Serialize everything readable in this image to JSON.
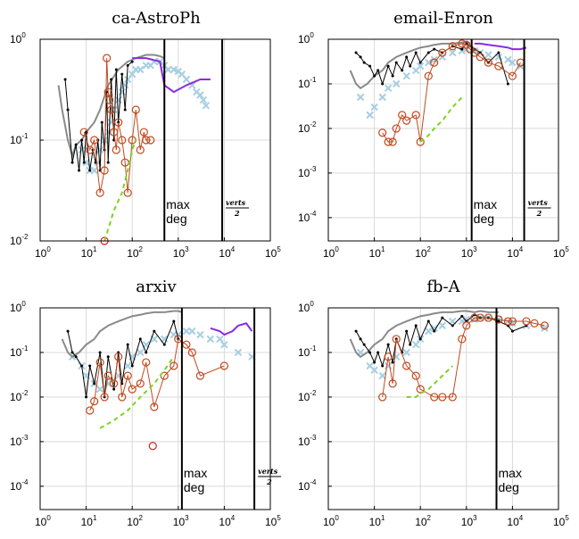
{
  "colors": {
    "light_blue": "#a6cee3",
    "gray": "#8a8a8a",
    "black": "#000000",
    "orange": "#c04a1f",
    "green": "#7ed321",
    "purple": "#8a2be2",
    "grid": "#d9d9d9"
  },
  "annotations": {
    "max_deg_line1": "max",
    "max_deg_line2": "deg",
    "verts_num": "verts",
    "verts_den": "2"
  },
  "chart_data": [
    {
      "type": "scatter",
      "title": "ca-AstroPh",
      "xscale": "log",
      "yscale": "log",
      "xlim": [
        1,
        100000
      ],
      "ylim": [
        0.01,
        1
      ],
      "yticks": [
        0.01,
        0.1,
        1
      ],
      "xticks": [
        1,
        10,
        100,
        1000,
        10000,
        100000
      ],
      "grid": true,
      "max_deg": 500,
      "verts_half": 9000,
      "series": [
        {
          "kind": "cloud",
          "x": [
            8,
            10,
            12,
            15,
            18,
            20,
            25,
            30,
            35,
            40,
            50,
            60,
            70,
            80,
            100,
            120,
            150,
            200,
            250,
            300,
            400,
            500,
            600,
            800,
            1000,
            1200,
            1500,
            2000,
            2500,
            3000,
            3500,
            4000
          ],
          "y": [
            0.08,
            0.06,
            0.05,
            0.05,
            0.06,
            0.08,
            0.1,
            0.12,
            0.15,
            0.2,
            0.25,
            0.3,
            0.35,
            0.4,
            0.45,
            0.5,
            0.5,
            0.55,
            0.55,
            0.6,
            0.6,
            0.55,
            0.5,
            0.5,
            0.48,
            0.45,
            0.4,
            0.35,
            0.3,
            0.28,
            0.25,
            0.22
          ]
        },
        {
          "kind": "gray",
          "x": [
            2.5,
            3,
            4,
            5,
            6,
            8,
            10,
            15,
            20,
            30,
            50,
            80,
            120,
            200,
            300,
            400,
            500
          ],
          "y": [
            0.35,
            0.2,
            0.1,
            0.07,
            0.09,
            0.1,
            0.12,
            0.15,
            0.2,
            0.35,
            0.5,
            0.6,
            0.65,
            0.7,
            0.7,
            0.68,
            0.65
          ]
        },
        {
          "kind": "black",
          "x": [
            3.5,
            4,
            5,
            6,
            7,
            8,
            9,
            10,
            12,
            14,
            16,
            18,
            20,
            22,
            25,
            28,
            30,
            35,
            40,
            45,
            50,
            60,
            70,
            80,
            100
          ],
          "y": [
            0.4,
            0.2,
            0.06,
            0.09,
            0.05,
            0.1,
            0.06,
            0.12,
            0.05,
            0.08,
            0.06,
            0.1,
            0.05,
            0.15,
            0.08,
            0.3,
            0.06,
            0.4,
            0.1,
            0.5,
            0.15,
            0.45,
            0.2,
            0.55,
            0.6
          ]
        },
        {
          "kind": "orange",
          "x": [
            9,
            12,
            15,
            20,
            25,
            28,
            30,
            32,
            35,
            40,
            45,
            50,
            60,
            70,
            80,
            100,
            120,
            150,
            180,
            200,
            250
          ],
          "y": [
            0.12,
            0.08,
            0.1,
            0.03,
            0.05,
            0.65,
            0.3,
            0.25,
            0.2,
            0.12,
            0.08,
            0.15,
            0.1,
            0.06,
            0.03,
            0.1,
            0.2,
            0.08,
            0.12,
            0.1,
            0.1
          ]
        },
        {
          "kind": "orange-point",
          "x": [
            25
          ],
          "y": [
            0.01
          ]
        },
        {
          "kind": "green",
          "x": [
            25,
            40,
            60,
            80,
            100,
            120
          ],
          "y": [
            0.01,
            0.02,
            0.03,
            0.05,
            0.08,
            0.1
          ]
        },
        {
          "kind": "purple",
          "x": [
            100,
            200,
            400,
            500,
            800,
            1500,
            3000,
            5000
          ],
          "y": [
            0.65,
            0.65,
            0.6,
            0.35,
            0.3,
            0.35,
            0.4,
            0.4
          ]
        }
      ]
    },
    {
      "type": "scatter",
      "title": "email-Enron",
      "xscale": "log",
      "yscale": "log",
      "xlim": [
        1,
        100000
      ],
      "ylim": [
        3e-05,
        1
      ],
      "yticks": [
        0.0001,
        0.001,
        0.01,
        0.1,
        1
      ],
      "xticks": [
        1,
        10,
        100,
        1000,
        10000,
        100000
      ],
      "grid": true,
      "max_deg": 1300,
      "verts_half": 18000,
      "series": [
        {
          "kind": "cloud",
          "x": [
            5,
            8,
            10,
            15,
            20,
            30,
            50,
            80,
            100,
            150,
            200,
            300,
            500,
            800,
            1000,
            1500,
            2000,
            3000,
            5000,
            8000,
            10000,
            15000
          ],
          "y": [
            0.05,
            0.02,
            0.03,
            0.05,
            0.08,
            0.1,
            0.15,
            0.2,
            0.25,
            0.3,
            0.35,
            0.4,
            0.5,
            0.55,
            0.6,
            0.55,
            0.5,
            0.45,
            0.4,
            0.35,
            0.3,
            0.25
          ]
        },
        {
          "kind": "gray",
          "x": [
            3,
            4,
            5,
            7,
            10,
            15,
            20,
            30,
            50,
            80,
            100,
            150,
            200,
            300,
            500,
            800,
            1000,
            1200
          ],
          "y": [
            0.2,
            0.1,
            0.08,
            0.1,
            0.15,
            0.2,
            0.3,
            0.4,
            0.5,
            0.6,
            0.65,
            0.7,
            0.75,
            0.8,
            0.8,
            0.85,
            0.85,
            0.8
          ]
        },
        {
          "kind": "black",
          "x": [
            4,
            5,
            6,
            8,
            10,
            12,
            15,
            20,
            25,
            30,
            40,
            50,
            60,
            80,
            100,
            150,
            200,
            300,
            500,
            800,
            1000,
            1500,
            2000,
            3000,
            5000,
            8000
          ],
          "y": [
            0.5,
            0.4,
            0.3,
            0.25,
            0.15,
            0.2,
            0.1,
            0.25,
            0.15,
            0.3,
            0.2,
            0.4,
            0.25,
            0.5,
            0.3,
            0.5,
            0.6,
            0.5,
            0.7,
            0.6,
            0.8,
            0.6,
            0.5,
            0.3,
            0.5,
            0.1
          ]
        },
        {
          "kind": "orange",
          "x": [
            15,
            20,
            25,
            30,
            40,
            50,
            80,
            100,
            150,
            200,
            300,
            500,
            800,
            1000,
            1200,
            1500,
            2000,
            3000,
            5000,
            10000,
            15000
          ],
          "y": [
            0.008,
            0.005,
            0.005,
            0.01,
            0.02,
            0.015,
            0.02,
            0.005,
            0.15,
            0.3,
            0.5,
            0.7,
            0.8,
            0.75,
            0.6,
            0.5,
            0.4,
            0.3,
            0.25,
            0.15,
            0.3
          ]
        },
        {
          "kind": "green",
          "x": [
            100,
            150,
            200,
            300,
            500,
            800
          ],
          "y": [
            0.005,
            0.007,
            0.01,
            0.015,
            0.03,
            0.05
          ]
        },
        {
          "kind": "purple",
          "x": [
            1500,
            2000,
            3000,
            5000,
            8000,
            10000,
            15000,
            20000
          ],
          "y": [
            0.8,
            0.8,
            0.75,
            0.7,
            0.65,
            0.6,
            0.6,
            0.65
          ]
        }
      ]
    },
    {
      "type": "scatter",
      "title": "arxiv",
      "xscale": "log",
      "yscale": "log",
      "xlim": [
        1,
        100000
      ],
      "ylim": [
        3e-05,
        1
      ],
      "yticks": [
        0.0001,
        0.001,
        0.01,
        0.1,
        1
      ],
      "xticks": [
        1,
        10,
        100,
        1000,
        10000,
        100000
      ],
      "grid": true,
      "max_deg": 1200,
      "verts_half": 45000,
      "series": [
        {
          "kind": "cloud",
          "x": [
            5,
            8,
            10,
            15,
            20,
            30,
            50,
            80,
            100,
            150,
            200,
            300,
            500,
            800,
            1000,
            1500,
            2000,
            3000,
            5000,
            8000,
            10000,
            20000,
            40000
          ],
          "y": [
            0.08,
            0.05,
            0.03,
            0.02,
            0.015,
            0.02,
            0.03,
            0.05,
            0.08,
            0.1,
            0.15,
            0.2,
            0.2,
            0.25,
            0.25,
            0.3,
            0.3,
            0.25,
            0.2,
            0.2,
            0.15,
            0.1,
            0.08
          ]
        },
        {
          "kind": "gray",
          "x": [
            3,
            4,
            5,
            7,
            10,
            15,
            20,
            30,
            50,
            80,
            100,
            150,
            200,
            300,
            500,
            800,
            1000,
            1200
          ],
          "y": [
            0.2,
            0.1,
            0.08,
            0.1,
            0.15,
            0.2,
            0.3,
            0.4,
            0.5,
            0.6,
            0.65,
            0.7,
            0.75,
            0.8,
            0.8,
            0.85,
            0.85,
            0.8
          ]
        },
        {
          "kind": "black",
          "x": [
            4,
            5,
            6,
            8,
            10,
            12,
            15,
            20,
            25,
            30,
            40,
            50,
            60,
            80,
            100,
            150,
            200,
            300,
            500,
            800,
            1000
          ],
          "y": [
            0.3,
            0.1,
            0.08,
            0.05,
            0.01,
            0.05,
            0.02,
            0.1,
            0.01,
            0.08,
            0.015,
            0.1,
            0.02,
            0.15,
            0.05,
            0.2,
            0.1,
            0.3,
            0.15,
            0.5,
            0.2
          ]
        },
        {
          "kind": "orange",
          "x": [
            12,
            15,
            20,
            25,
            30,
            40,
            50,
            60,
            80,
            100,
            150,
            200,
            300,
            500,
            800,
            1000,
            1500,
            2000,
            3000,
            10000
          ],
          "y": [
            0.005,
            0.008,
            0.06,
            0.01,
            0.03,
            0.02,
            0.08,
            0.01,
            0.03,
            0.015,
            0.02,
            0.06,
            0.006,
            0.03,
            0.05,
            0.2,
            0.15,
            0.1,
            0.03,
            0.05
          ]
        },
        {
          "kind": "orange-point",
          "x": [
            280
          ],
          "y": [
            0.0008
          ]
        },
        {
          "kind": "green",
          "x": [
            20,
            40,
            80,
            150,
            300,
            500,
            800
          ],
          "y": [
            0.002,
            0.003,
            0.005,
            0.01,
            0.02,
            0.04,
            0.08
          ]
        },
        {
          "kind": "purple",
          "x": [
            5000,
            8000,
            10000,
            15000,
            20000,
            30000,
            40000
          ],
          "y": [
            0.35,
            0.3,
            0.25,
            0.3,
            0.4,
            0.45,
            0.3
          ]
        }
      ]
    },
    {
      "type": "scatter",
      "title": "fb-A",
      "xscale": "log",
      "yscale": "log",
      "xlim": [
        1,
        100000
      ],
      "ylim": [
        3e-05,
        1
      ],
      "yticks": [
        0.0001,
        0.001,
        0.01,
        0.1,
        1
      ],
      "xticks": [
        1,
        10,
        100,
        1000,
        10000,
        100000
      ],
      "grid": true,
      "max_deg": 4500,
      "verts_half": 100000,
      "series": [
        {
          "kind": "cloud",
          "x": [
            5,
            8,
            10,
            15,
            20,
            30,
            50,
            80,
            100,
            150,
            200,
            300,
            500,
            800,
            1000,
            1500,
            2000,
            3000,
            5000,
            8000,
            10000,
            20000,
            50000
          ],
          "y": [
            0.1,
            0.05,
            0.04,
            0.03,
            0.05,
            0.08,
            0.1,
            0.15,
            0.2,
            0.3,
            0.35,
            0.4,
            0.5,
            0.5,
            0.55,
            0.55,
            0.6,
            0.6,
            0.55,
            0.5,
            0.45,
            0.4,
            0.35
          ]
        },
        {
          "kind": "gray",
          "x": [
            3,
            4,
            5,
            7,
            10,
            15,
            20,
            30,
            50,
            80,
            100,
            150,
            200,
            300,
            500,
            800,
            1000,
            1500,
            2000,
            3000,
            5000
          ],
          "y": [
            0.2,
            0.1,
            0.08,
            0.1,
            0.15,
            0.2,
            0.3,
            0.4,
            0.5,
            0.6,
            0.65,
            0.7,
            0.75,
            0.8,
            0.8,
            0.85,
            0.85,
            0.8,
            0.85,
            0.8,
            0.8
          ]
        },
        {
          "kind": "black",
          "x": [
            4,
            5,
            6,
            8,
            10,
            12,
            15,
            20,
            25,
            30,
            40,
            50,
            60,
            80,
            100,
            150,
            200,
            300,
            500,
            800,
            1000,
            1500,
            2000,
            3000,
            5000,
            8000,
            10000,
            20000
          ],
          "y": [
            0.3,
            0.2,
            0.15,
            0.1,
            0.06,
            0.1,
            0.05,
            0.15,
            0.06,
            0.2,
            0.1,
            0.3,
            0.15,
            0.4,
            0.2,
            0.5,
            0.3,
            0.6,
            0.4,
            0.65,
            0.5,
            0.7,
            0.6,
            0.6,
            0.5,
            0.4,
            0.3,
            0.4
          ]
        },
        {
          "kind": "orange",
          "x": [
            15,
            20,
            25,
            30,
            50,
            80,
            100,
            200,
            300,
            500,
            800,
            1000,
            1500,
            2000,
            3000,
            5000,
            8000,
            10000,
            20000,
            30000,
            50000
          ],
          "y": [
            0.01,
            0.08,
            0.02,
            0.2,
            0.05,
            0.03,
            0.015,
            0.01,
            0.01,
            0.01,
            0.2,
            0.4,
            0.6,
            0.6,
            0.6,
            0.55,
            0.5,
            0.5,
            0.5,
            0.45,
            0.4
          ]
        },
        {
          "kind": "green",
          "x": [
            50,
            80,
            100,
            150,
            200,
            300,
            500
          ],
          "y": [
            0.01,
            0.01,
            0.012,
            0.015,
            0.02,
            0.03,
            0.05
          ]
        }
      ]
    }
  ]
}
